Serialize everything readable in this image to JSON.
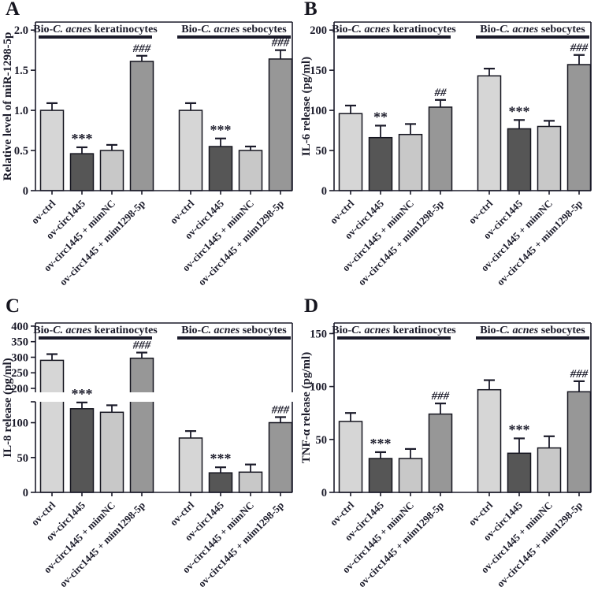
{
  "figure": {
    "ink_color": "#1b1b2a",
    "bar_fill_colors": [
      "#d6d6d6",
      "#565656",
      "#c8c8c8",
      "#979797"
    ],
    "bar_stroke_color": "#15151f",
    "background_color": "#ffffff"
  },
  "chart_data": [
    {
      "id": "A",
      "type": "bar",
      "title": "",
      "xlabel": "",
      "ylabel": "Relative level of miR-1298-5p",
      "ylim": [
        0,
        2.1
      ],
      "ytick_values": [
        0,
        0.5,
        1.0,
        1.5,
        2.0
      ],
      "ytick_labels": [
        "0",
        "0.5",
        "1.0",
        "1.5",
        "2.0"
      ],
      "grid": false,
      "legend": "none",
      "categories": [
        "ov-ctrl",
        "ov-circ1445",
        "ov-circ1445 + mimNC",
        "ov-circ1445 + mim1298-5p"
      ],
      "groups": [
        {
          "label": "Bio-C. acnes keratinocytes",
          "label_parts": [
            "Bio-",
            "C. acnes",
            " keratinocytes"
          ],
          "values": [
            1.0,
            0.46,
            0.5,
            1.61
          ],
          "errors": [
            0.09,
            0.08,
            0.07,
            0.07
          ],
          "sig": [
            "",
            "***",
            "",
            "###"
          ]
        },
        {
          "label": "Bio-C. acnes sebocytes",
          "label_parts": [
            "Bio-",
            "C. acnes",
            " sebocytes"
          ],
          "values": [
            1.0,
            0.55,
            0.5,
            1.64
          ],
          "errors": [
            0.09,
            0.1,
            0.05,
            0.11
          ],
          "sig": [
            "",
            "***",
            "",
            "###"
          ]
        }
      ]
    },
    {
      "id": "B",
      "type": "bar",
      "title": "",
      "xlabel": "",
      "ylabel": "IL-6 release (pg/ml)",
      "ylim": [
        0,
        210
      ],
      "ytick_values": [
        0,
        50,
        100,
        150,
        200
      ],
      "ytick_labels": [
        "0",
        "50",
        "100",
        "150",
        "200"
      ],
      "grid": false,
      "legend": "none",
      "categories": [
        "ov-ctrl",
        "ov-circ1445",
        "ov-circ1445 + mimNC",
        "ov-circ1445 + mim1298-5p"
      ],
      "groups": [
        {
          "label": "Bio-C. acnes keratinocytes",
          "label_parts": [
            "Bio-",
            "C. acnes",
            " keratinocytes"
          ],
          "values": [
            96,
            66,
            70,
            104
          ],
          "errors": [
            10,
            15,
            13,
            9
          ],
          "sig": [
            "",
            "**",
            "",
            "##"
          ]
        },
        {
          "label": "Bio-C. acnes sebocytes",
          "label_parts": [
            "Bio-",
            "C. acnes",
            " sebocytes"
          ],
          "values": [
            143,
            77,
            80,
            157
          ],
          "errors": [
            9,
            11,
            7,
            12
          ],
          "sig": [
            "",
            "***",
            "",
            "###"
          ]
        }
      ]
    },
    {
      "id": "C",
      "type": "bar",
      "title": "",
      "xlabel": "",
      "ylabel": "IL-8 release (pg/ml)",
      "ylim": [
        0,
        410
      ],
      "axis_break": {
        "lower_max": 130,
        "upper_min": 200,
        "upper_max": 410,
        "lower_ticks": [
          0,
          50,
          100
        ],
        "lower_tick_labels": [
          "0",
          "50",
          "100"
        ],
        "upper_ticks": [
          200,
          250,
          300,
          350,
          400
        ],
        "upper_tick_labels": [
          "200",
          "250",
          "300",
          "350",
          "400"
        ]
      },
      "grid": false,
      "legend": "none",
      "categories": [
        "ov-ctrl",
        "ov-circ1445",
        "ov-circ1445 + mimNC",
        "ov-circ1445 + mim1298-5p"
      ],
      "groups": [
        {
          "label": "Bio-C. acnes keratinocytes",
          "label_parts": [
            "Bio-",
            "C. acnes",
            " keratinocytes"
          ],
          "values": [
            290,
            120,
            115,
            297
          ],
          "errors": [
            20,
            9,
            10,
            18
          ],
          "sig": [
            "",
            "***",
            "",
            "###"
          ]
        },
        {
          "label": "Bio-C. acnes sebocytes",
          "label_parts": [
            "Bio-",
            "C. acnes",
            " sebocytes"
          ],
          "values": [
            78,
            28,
            29,
            100
          ],
          "errors": [
            10,
            8,
            11,
            8
          ],
          "sig": [
            "",
            "***",
            "",
            "###"
          ]
        }
      ]
    },
    {
      "id": "D",
      "type": "bar",
      "title": "",
      "xlabel": "",
      "ylabel": "TNF-α release (pg/ml)",
      "ylim": [
        0,
        160
      ],
      "ytick_values": [
        0,
        50,
        100,
        150
      ],
      "ytick_labels": [
        "0",
        "50",
        "100",
        "150"
      ],
      "grid": false,
      "legend": "none",
      "categories": [
        "ov-ctrl",
        "ov-circ1445",
        "ov-circ1445 + mimNC",
        "ov-circ1445 + mim1298-5p"
      ],
      "groups": [
        {
          "label": "Bio-C. acnes keratinocytes",
          "label_parts": [
            "Bio-",
            "C. acnes",
            " keratinocytes"
          ],
          "values": [
            67,
            32,
            32,
            74
          ],
          "errors": [
            8,
            6,
            9,
            10
          ],
          "sig": [
            "",
            "***",
            "",
            "###"
          ]
        },
        {
          "label": "Bio-C. acnes sebocytes",
          "label_parts": [
            "Bio-",
            "C. acnes",
            " sebocytes"
          ],
          "values": [
            97,
            37,
            42,
            95
          ],
          "errors": [
            9,
            14,
            11,
            10
          ],
          "sig": [
            "",
            "***",
            "",
            "###"
          ]
        }
      ]
    }
  ]
}
